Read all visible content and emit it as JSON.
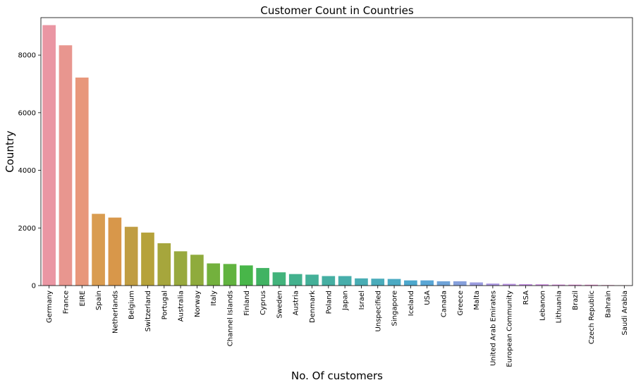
{
  "chart_data": {
    "type": "bar",
    "title": "Customer Count in Countries",
    "xlabel": "No. Of customers",
    "ylabel": "Country",
    "ylim": [
      0,
      9300
    ],
    "yticks": [
      0,
      2000,
      4000,
      6000,
      8000
    ],
    "grid": false,
    "categories": [
      "Germany",
      "France",
      "EIRE",
      "Spain",
      "Netherlands",
      "Belgium",
      "Switzerland",
      "Portugal",
      "Australia",
      "Norway",
      "Italy",
      "Channel Islands",
      "Finland",
      "Cyprus",
      "Sweden",
      "Austria",
      "Denmark",
      "Poland",
      "Japan",
      "Israel",
      "Unspecified",
      "Singapore",
      "Iceland",
      "USA",
      "Canada",
      "Greece",
      "Malta",
      "United Arab Emirates",
      "European Community",
      "RSA",
      "Lebanon",
      "Lithuania",
      "Brazil",
      "Czech Republic",
      "Bahrain",
      "Saudi Arabia"
    ],
    "values": [
      9040,
      8340,
      7220,
      2490,
      2360,
      2040,
      1840,
      1470,
      1190,
      1070,
      770,
      750,
      700,
      610,
      460,
      400,
      380,
      330,
      330,
      250,
      240,
      230,
      180,
      180,
      150,
      150,
      110,
      70,
      60,
      50,
      45,
      35,
      32,
      30,
      18,
      10
    ],
    "colors": [
      "#ea96a3",
      "#e8968f",
      "#e8977b",
      "#d99c50",
      "#d8974a",
      "#c09d42",
      "#b6a23a",
      "#a6a63c",
      "#98a93e",
      "#8fab3c",
      "#73b13d",
      "#61b33f",
      "#48b649",
      "#41b363",
      "#42b37b",
      "#43b18d",
      "#44b098",
      "#45afa2",
      "#47aeab",
      "#48adb4",
      "#4aacbb",
      "#4baac3",
      "#4da8cd",
      "#59a6d5",
      "#6fa3d8",
      "#86a0db",
      "#9b9cdf",
      "#ad98e2",
      "#ba94e3",
      "#c591e2",
      "#cd8fe0",
      "#d68bdc",
      "#de88d5",
      "#e387ca",
      "#e88abf",
      "#e98eb3"
    ]
  }
}
